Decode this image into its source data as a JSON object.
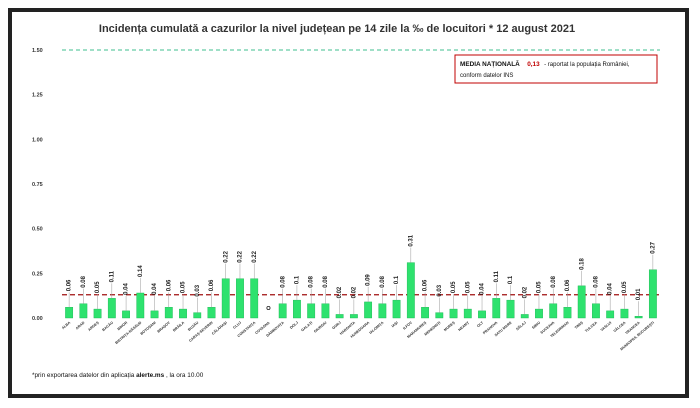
{
  "chart_data": {
    "type": "bar",
    "title": "Incidența cumulată a cazurilor la nivel județean pe 14 zile la ‰ de locuitori *  12 august 2021",
    "xlabel": "",
    "ylabel": "",
    "ylim": [
      0,
      1.5
    ],
    "yticks": [
      "0.00",
      "0.25",
      "0.50",
      "0.75",
      "1.00",
      "1.25",
      "1.50"
    ],
    "grid": false,
    "categories": [
      "ALBA",
      "ARAD",
      "ARGEȘ",
      "BACĂU",
      "BIHOR",
      "BISTRIȚA-NĂSĂUD",
      "BOTOȘANI",
      "BRAȘOV",
      "BRĂILA",
      "BUZĂU",
      "CARAȘ-SEVERIN",
      "CĂLĂRAȘI",
      "CLUJ",
      "CONSTANȚA",
      "COVASNA",
      "DÂMBOVIȚA",
      "DOLJ",
      "GALAȚI",
      "GIURGIU",
      "GORJ",
      "HARGHITA",
      "HUNEDOARA",
      "IALOMIȚA",
      "IAȘI",
      "ILFOV",
      "MARAMUREȘ",
      "MEHEDINȚI",
      "MUREȘ",
      "NEAMȚ",
      "OLT",
      "PRAHOVA",
      "SATU MARE",
      "SĂLAJ",
      "SIBIU",
      "SUCEAVA",
      "TELEORMAN",
      "TIMIȘ",
      "TULCEA",
      "VASLUI",
      "VÂLCEA",
      "VRANCEA",
      "MUNICIPIUL BUCUREȘTI"
    ],
    "values": [
      0.06,
      0.08,
      0.05,
      0.11,
      0.04,
      0.14,
      0.04,
      0.06,
      0.05,
      0.03,
      0.06,
      0.22,
      0.22,
      0.22,
      0,
      0.08,
      0.1,
      0.08,
      0.08,
      0.02,
      0.02,
      0.09,
      0.08,
      0.1,
      0.31,
      0.06,
      0.03,
      0.05,
      0.05,
      0.04,
      0.11,
      0.1,
      0.02,
      0.05,
      0.08,
      0.06,
      0.18,
      0.08,
      0.04,
      0.05,
      0.01,
      0.27
    ],
    "labels": [
      "0.06",
      "0.08",
      "0.05",
      "0.11",
      "0.04",
      "0.14",
      "0.04",
      "0.06",
      "0.05",
      "0.03",
      "0.06",
      "0.22",
      "0.22",
      "0.22",
      "",
      "0.08",
      "0.1",
      "0.08",
      "0.08",
      "0.02",
      "0.02",
      "0.09",
      "0.08",
      "0.1",
      "0.31",
      "0.06",
      "0.03",
      "0.05",
      "0.05",
      "0.04",
      "0.11",
      "0.1",
      "0.02",
      "0.05",
      "0.08",
      "0.06",
      "0.18",
      "0.08",
      "0.04",
      "0.05",
      "0.01",
      "0.27"
    ],
    "reference_lines": [
      {
        "value": 1.5,
        "color": "#3fbf8f",
        "style": "dashed"
      },
      {
        "value": 0.13,
        "color": "#a01010",
        "style": "dashed"
      }
    ],
    "bar_color": "#2ee26e"
  },
  "colors": {
    "bar": "#2ee26e",
    "bar_edge": "#17b44f",
    "national_line": "#a01010",
    "top_line": "#3fbf8f",
    "box_border": "#c00000"
  },
  "annotation_box": {
    "line1_bold": "MEDIA NAȚIONALĂ",
    "line1_value": "0,13",
    "line1_rest": " - raportat la populația României,",
    "line2": "conform datelor INS"
  },
  "footnote": {
    "prefix": "*prin exportarea datelor din aplicația ",
    "app": "alerte.ms",
    "suffix": ", la ora 10.00"
  }
}
